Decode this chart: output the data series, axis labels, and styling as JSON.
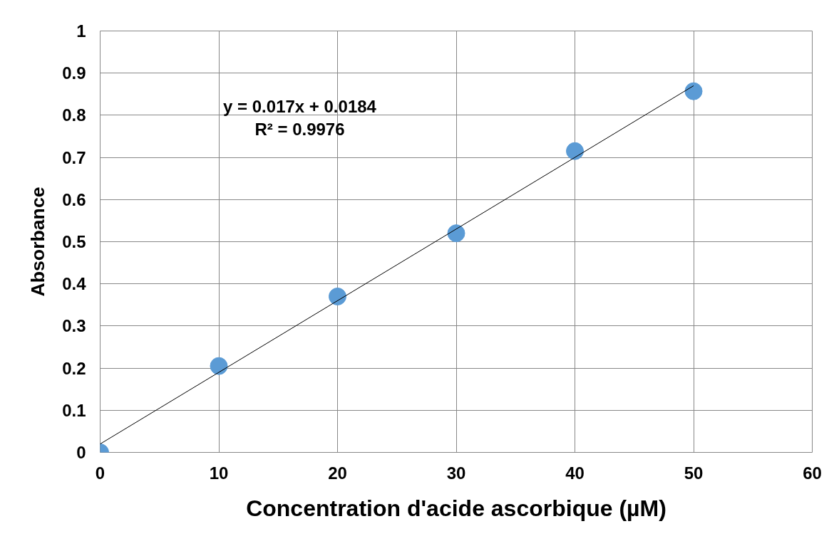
{
  "chart_data": {
    "type": "scatter",
    "xlabel": "Concentration d'acide ascorbique (µM)",
    "ylabel": "Absorbance",
    "xlim": [
      0,
      60
    ],
    "xticks": [
      0,
      10,
      20,
      30,
      40,
      50,
      60
    ],
    "ylim": [
      0,
      1
    ],
    "yticks": [
      0,
      0.1,
      0.2,
      0.3,
      0.4,
      0.5,
      0.6,
      0.7,
      0.8,
      0.9,
      1
    ],
    "grid": true,
    "series": [
      {
        "color": "#5b9bd5",
        "marker": "circle",
        "x": [
          0,
          10,
          20,
          30,
          40,
          50
        ],
        "values": [
          0,
          0.205,
          0.37,
          0.52,
          0.715,
          0.857
        ]
      },
      {
        "type": "line",
        "color": "#000000",
        "marker": "none",
        "line_style": "solid",
        "x": [
          0,
          50
        ],
        "values": [
          0.02,
          0.87
        ]
      }
    ],
    "annotations": [
      "y = 0.017x + 0.0184\nR² = 0.9976"
    ]
  }
}
